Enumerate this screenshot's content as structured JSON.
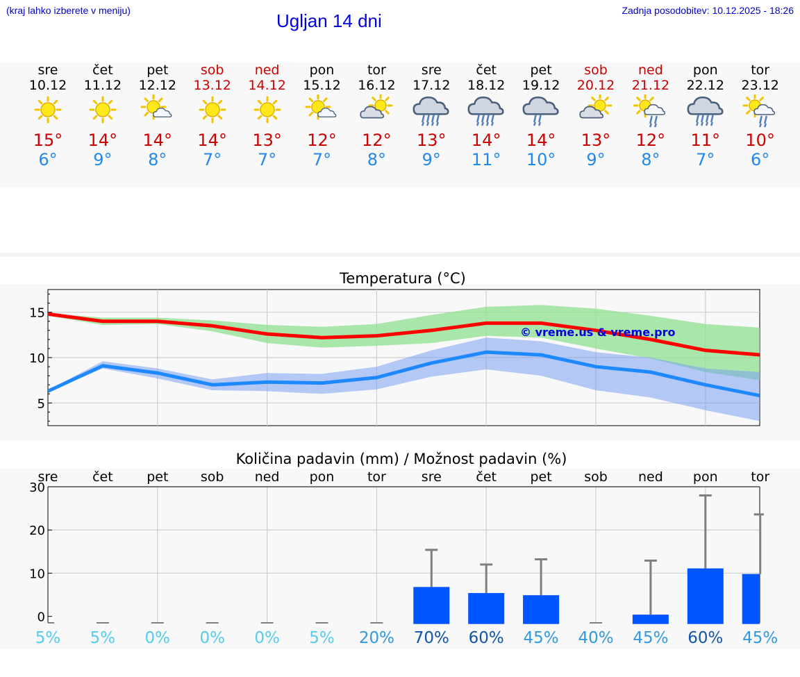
{
  "header": {
    "hint": "(kraj lahko izberete v meniju)",
    "title": "Ugljan 14 dni",
    "updated": "Zadnja posodobitev: 10.12.2025 - 18:26"
  },
  "colors": {
    "high": "#cc0000",
    "low": "#2288ee",
    "max_line": "#ff0000",
    "min_line": "#1e88ff",
    "max_band": "#8fe08f",
    "min_band": "#7aa0f0",
    "rain_bar": "#0055ff"
  },
  "days": [
    {
      "name": "sre",
      "date": "10.12",
      "high": "15°",
      "low": "6°",
      "icon": "sun-icon",
      "weekend": false
    },
    {
      "name": "čet",
      "date": "11.12",
      "high": "14°",
      "low": "9°",
      "icon": "sun-icon",
      "weekend": false
    },
    {
      "name": "pet",
      "date": "12.12",
      "high": "14°",
      "low": "8°",
      "icon": "sun-cloud-icon",
      "weekend": false
    },
    {
      "name": "sob",
      "date": "13.12",
      "high": "14°",
      "low": "7°",
      "icon": "sun-icon",
      "weekend": true
    },
    {
      "name": "ned",
      "date": "14.12",
      "high": "13°",
      "low": "7°",
      "icon": "sun-icon",
      "weekend": true
    },
    {
      "name": "pon",
      "date": "15.12",
      "high": "12°",
      "low": "7°",
      "icon": "sun-cloud-icon",
      "weekend": false
    },
    {
      "name": "tor",
      "date": "16.12",
      "high": "12°",
      "low": "8°",
      "icon": "cloud-sun-icon",
      "weekend": false
    },
    {
      "name": "sre",
      "date": "17.12",
      "high": "13°",
      "low": "9°",
      "icon": "heavy-rain-icon",
      "weekend": false
    },
    {
      "name": "čet",
      "date": "18.12",
      "high": "14°",
      "low": "11°",
      "icon": "heavy-rain-icon",
      "weekend": false
    },
    {
      "name": "pet",
      "date": "19.12",
      "high": "14°",
      "low": "10°",
      "icon": "rain-icon",
      "weekend": false
    },
    {
      "name": "sob",
      "date": "20.12",
      "high": "13°",
      "low": "9°",
      "icon": "cloud-sun-icon",
      "weekend": true
    },
    {
      "name": "ned",
      "date": "21.12",
      "high": "12°",
      "low": "8°",
      "icon": "sun-cloud-rain-icon",
      "weekend": true
    },
    {
      "name": "pon",
      "date": "22.12",
      "high": "11°",
      "low": "7°",
      "icon": "heavy-rain-icon",
      "weekend": false
    },
    {
      "name": "tor",
      "date": "23.12",
      "high": "10°",
      "low": "6°",
      "icon": "sun-cloud-rain-icon",
      "weekend": false
    }
  ],
  "chart_data": [
    {
      "type": "line",
      "title": "Temperatura (°C)",
      "watermark": "© vreme.us & vreme.pro",
      "ylim": [
        2.5,
        17.5
      ],
      "yticks": [
        5,
        10,
        15
      ],
      "grid": true,
      "series": [
        {
          "name": "max",
          "values": [
            14.8,
            14.0,
            14.0,
            13.5,
            12.6,
            12.2,
            12.4,
            13.0,
            13.8,
            13.8,
            13.0,
            12.0,
            10.8,
            10.3
          ]
        },
        {
          "name": "min",
          "values": [
            6.3,
            9.1,
            8.3,
            7.0,
            7.3,
            7.2,
            7.8,
            9.4,
            10.6,
            10.3,
            9.0,
            8.4,
            7.0,
            5.8
          ]
        },
        {
          "name": "max_band_upper",
          "values": [
            14.9,
            14.4,
            14.4,
            14.1,
            13.6,
            13.4,
            13.7,
            14.7,
            15.6,
            15.8,
            15.4,
            14.6,
            13.7,
            13.3
          ]
        },
        {
          "name": "max_band_lower",
          "values": [
            14.6,
            13.6,
            13.7,
            12.9,
            11.6,
            11.1,
            11.3,
            11.6,
            12.4,
            12.2,
            11.0,
            9.9,
            8.4,
            7.5
          ]
        },
        {
          "name": "min_band_upper",
          "values": [
            6.4,
            9.6,
            8.8,
            7.6,
            8.3,
            8.2,
            9.0,
            10.8,
            12.2,
            11.8,
            10.6,
            10.0,
            8.8,
            8.4
          ]
        },
        {
          "name": "min_band_lower",
          "values": [
            6.2,
            8.8,
            7.7,
            6.4,
            6.3,
            6.0,
            6.5,
            7.9,
            8.7,
            8.0,
            6.4,
            5.6,
            4.2,
            3.0
          ]
        }
      ]
    },
    {
      "type": "bar",
      "title": "Količina padavin (mm) / Možnost padavin (%)",
      "categories": [
        "sre",
        "čet",
        "pet",
        "sob",
        "ned",
        "pon",
        "tor",
        "sre",
        "čet",
        "pet",
        "sob",
        "ned",
        "pon",
        "tor"
      ],
      "ylim": [
        -1.5,
        30
      ],
      "yticks": [
        0,
        10,
        20,
        30
      ],
      "values": [
        0,
        0,
        0,
        0,
        0,
        0,
        0,
        6.8,
        5.4,
        4.9,
        0,
        0.4,
        11.1,
        9.8
      ],
      "error_high": [
        0,
        0,
        0,
        0,
        0,
        0,
        0,
        15.4,
        12.0,
        13.2,
        0,
        12.9,
        28.0,
        23.6
      ],
      "probability": [
        "5%",
        "5%",
        "0%",
        "0%",
        "0%",
        "5%",
        "20%",
        "70%",
        "60%",
        "45%",
        "40%",
        "45%",
        "60%",
        "45%"
      ],
      "probability_colors": [
        "#55ccee",
        "#55ccee",
        "#55ccee",
        "#55ccee",
        "#55ccee",
        "#55ccee",
        "#3399dd",
        "#1155aa",
        "#1155aa",
        "#3399dd",
        "#3399dd",
        "#3399dd",
        "#1155aa",
        "#3399dd"
      ]
    }
  ]
}
